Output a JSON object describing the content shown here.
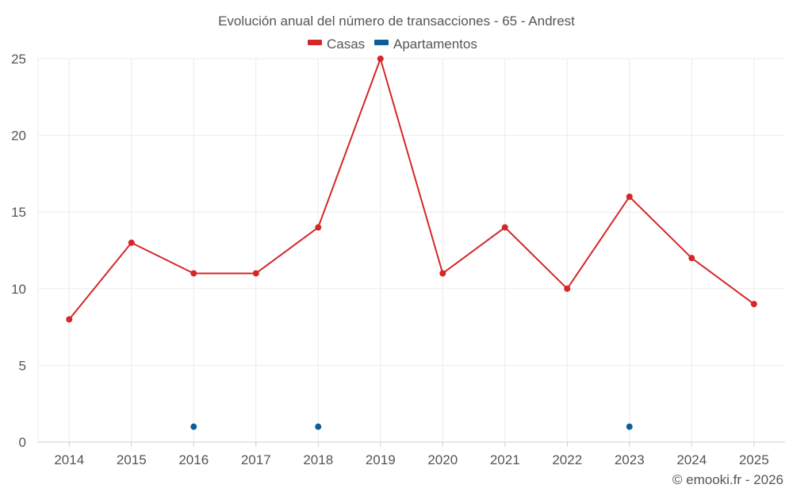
{
  "chart_data": {
    "type": "line",
    "title": "Evolución anual del número de transacciones - 65 - Andrest",
    "categories": [
      "2014",
      "2015",
      "2016",
      "2017",
      "2018",
      "2019",
      "2020",
      "2021",
      "2022",
      "2023",
      "2024",
      "2025"
    ],
    "ylim": [
      0,
      25
    ],
    "yticks": [
      "0",
      "5",
      "10",
      "15",
      "20",
      "25"
    ],
    "grid": true,
    "legend_position": "top-center",
    "series": [
      {
        "name": "Casas",
        "color": "#d62728",
        "values": [
          8,
          13,
          11,
          11,
          14,
          25,
          11,
          14,
          10,
          16,
          12,
          9
        ]
      },
      {
        "name": "Apartamentos",
        "color": "#0a5f9a",
        "values": [
          null,
          null,
          1,
          null,
          1,
          null,
          null,
          null,
          null,
          1,
          null,
          null
        ]
      }
    ]
  },
  "credit": "© emooki.fr - 2026"
}
